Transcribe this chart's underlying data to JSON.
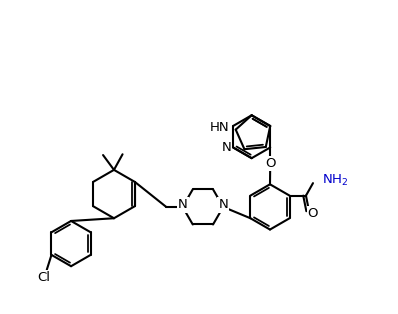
{
  "background_color": "#ffffff",
  "bond_color": "#000000",
  "bond_width": 1.5,
  "figsize": [
    3.98,
    3.14
  ],
  "dpi": 100,
  "NH2_color": "#0000cc",
  "xlim": [
    0.0,
    10.0
  ],
  "ylim": [
    1.2,
    8.8
  ]
}
